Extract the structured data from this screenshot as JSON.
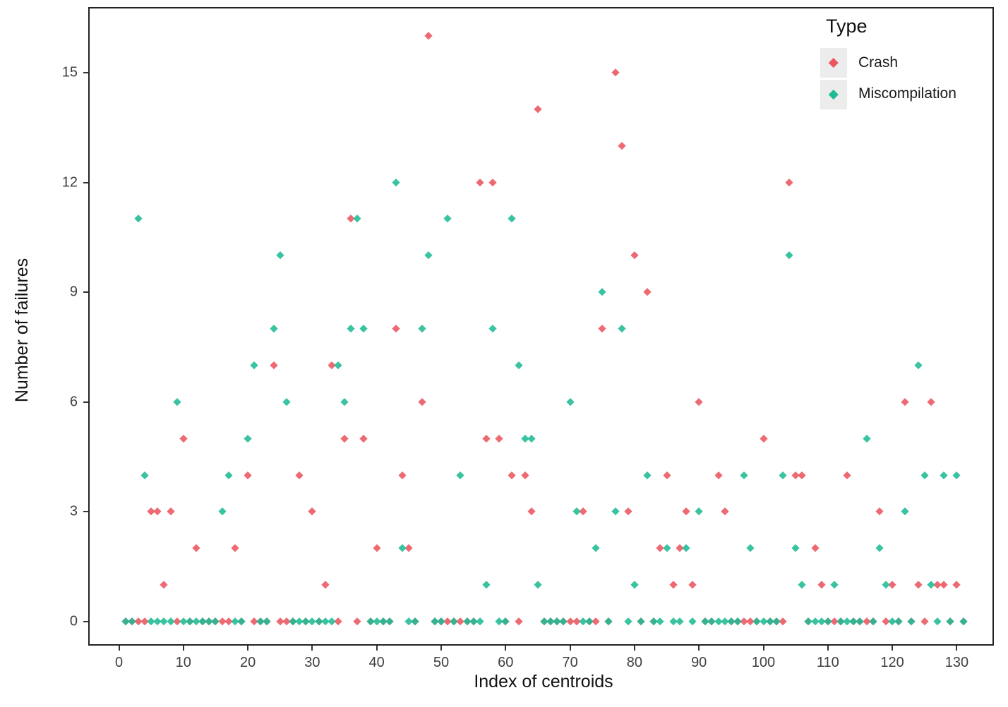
{
  "page": {
    "background": "#ffffff"
  },
  "chart_data": {
    "type": "scatter",
    "marker": "diamond",
    "title": "",
    "xlabel": "Index of centroids",
    "ylabel": "Number of failures",
    "xlim": [
      -5,
      136
    ],
    "ylim": [
      -0.6,
      16.8
    ],
    "x_ticks": [
      0,
      10,
      20,
      30,
      40,
      50,
      60,
      70,
      80,
      90,
      100,
      110,
      120,
      130
    ],
    "y_ticks": [
      0,
      3,
      6,
      9,
      12,
      15
    ],
    "grid": "off",
    "legend": {
      "position": "inside-top-right",
      "title": "Type",
      "entries": [
        {
          "label": "Crash",
          "color": "#EB5560"
        },
        {
          "label": "Miscompilation",
          "color": "#1EBB94"
        }
      ]
    },
    "zero_fill": {
      "from": 1,
      "to": 131,
      "value": 0,
      "note": "every index in range without a nonzero value for a series has a point at y=0"
    },
    "series": [
      {
        "name": "Crash",
        "color": "#EB5560",
        "points": [
          [
            5,
            3
          ],
          [
            6,
            3
          ],
          [
            7,
            1
          ],
          [
            8,
            3
          ],
          [
            10,
            5
          ],
          [
            12,
            2
          ],
          [
            18,
            2
          ],
          [
            20,
            4
          ],
          [
            24,
            7
          ],
          [
            28,
            4
          ],
          [
            30,
            3
          ],
          [
            32,
            1
          ],
          [
            33,
            7
          ],
          [
            35,
            5
          ],
          [
            36,
            11
          ],
          [
            38,
            5
          ],
          [
            40,
            2
          ],
          [
            43,
            8
          ],
          [
            44,
            4
          ],
          [
            45,
            2
          ],
          [
            47,
            6
          ],
          [
            48,
            16
          ],
          [
            56,
            12
          ],
          [
            57,
            5
          ],
          [
            58,
            12
          ],
          [
            59,
            5
          ],
          [
            61,
            4
          ],
          [
            63,
            4
          ],
          [
            64,
            3
          ],
          [
            65,
            14
          ],
          [
            72,
            3
          ],
          [
            75,
            8
          ],
          [
            77,
            15
          ],
          [
            78,
            13
          ],
          [
            79,
            3
          ],
          [
            80,
            10
          ],
          [
            82,
            9
          ],
          [
            84,
            2
          ],
          [
            85,
            4
          ],
          [
            86,
            1
          ],
          [
            87,
            2
          ],
          [
            88,
            3
          ],
          [
            89,
            1
          ],
          [
            90,
            6
          ],
          [
            93,
            4
          ],
          [
            94,
            3
          ],
          [
            100,
            5
          ],
          [
            104,
            12
          ],
          [
            105,
            4
          ],
          [
            106,
            4
          ],
          [
            108,
            2
          ],
          [
            109,
            1
          ],
          [
            113,
            4
          ],
          [
            118,
            3
          ],
          [
            120,
            1
          ],
          [
            122,
            6
          ],
          [
            124,
            1
          ],
          [
            126,
            6
          ],
          [
            127,
            1
          ],
          [
            128,
            1
          ],
          [
            130,
            1
          ]
        ]
      },
      {
        "name": "Miscompilation",
        "color": "#1EBB94",
        "points": [
          [
            3,
            11
          ],
          [
            4,
            4
          ],
          [
            9,
            6
          ],
          [
            16,
            3
          ],
          [
            17,
            4
          ],
          [
            20,
            5
          ],
          [
            21,
            7
          ],
          [
            24,
            8
          ],
          [
            25,
            10
          ],
          [
            26,
            6
          ],
          [
            34,
            7
          ],
          [
            35,
            6
          ],
          [
            36,
            8
          ],
          [
            37,
            11
          ],
          [
            38,
            8
          ],
          [
            43,
            12
          ],
          [
            44,
            2
          ],
          [
            47,
            8
          ],
          [
            48,
            10
          ],
          [
            51,
            11
          ],
          [
            53,
            4
          ],
          [
            57,
            1
          ],
          [
            58,
            8
          ],
          [
            61,
            11
          ],
          [
            62,
            7
          ],
          [
            63,
            5
          ],
          [
            64,
            5
          ],
          [
            65,
            1
          ],
          [
            70,
            6
          ],
          [
            71,
            3
          ],
          [
            74,
            2
          ],
          [
            75,
            9
          ],
          [
            77,
            3
          ],
          [
            78,
            8
          ],
          [
            80,
            1
          ],
          [
            82,
            4
          ],
          [
            85,
            2
          ],
          [
            88,
            2
          ],
          [
            90,
            3
          ],
          [
            97,
            4
          ],
          [
            98,
            2
          ],
          [
            103,
            4
          ],
          [
            104,
            10
          ],
          [
            105,
            2
          ],
          [
            106,
            1
          ],
          [
            111,
            1
          ],
          [
            116,
            5
          ],
          [
            118,
            2
          ],
          [
            119,
            1
          ],
          [
            122,
            3
          ],
          [
            124,
            7
          ],
          [
            125,
            4
          ],
          [
            126,
            1
          ],
          [
            128,
            4
          ],
          [
            130,
            4
          ]
        ]
      }
    ]
  }
}
